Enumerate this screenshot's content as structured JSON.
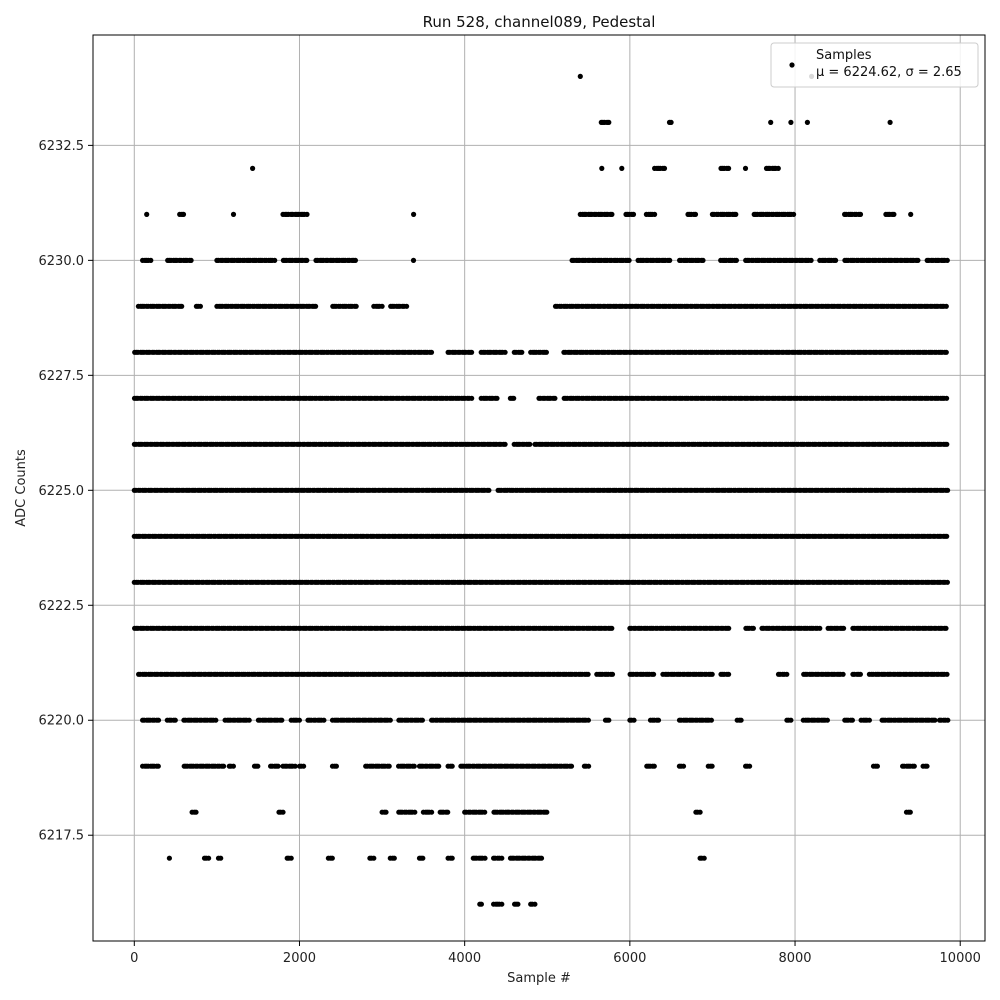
{
  "chart_data": {
    "type": "scatter",
    "title": "Run 528, channel089, Pedestal",
    "xlabel": "Sample #",
    "ylabel": "ADC Counts",
    "xlim": [
      -500,
      10300
    ],
    "ylim": [
      6215.2,
      6234.9
    ],
    "x_ticks": [
      0,
      2000,
      4000,
      6000,
      8000,
      10000
    ],
    "y_ticks": [
      6217.5,
      6220.0,
      6222.5,
      6225.0,
      6227.5,
      6230.0,
      6232.5
    ],
    "grid": true,
    "legend_position": "top-right",
    "series": [
      {
        "name": "Samples",
        "label_stats": "μ = 6224.62, σ = 2.65",
        "color": "#000000",
        "marker": "dot",
        "level_ranges": [
          {
            "y": 6234,
            "x_ranges": [
              [
                5400,
                5420
              ],
              [
                8200,
                8220
              ]
            ]
          },
          {
            "y": 6233,
            "x_ranges": [
              [
                5650,
                5750
              ],
              [
                6480,
                6510
              ],
              [
                7700,
                7720
              ],
              [
                7950,
                7970
              ],
              [
                8150,
                8170
              ],
              [
                9150,
                9170
              ]
            ]
          },
          {
            "y": 6232,
            "x_ranges": [
              [
                1430,
                1450
              ],
              [
                5660,
                5680
              ],
              [
                5900,
                5920
              ],
              [
                6300,
                6420
              ],
              [
                7100,
                7200
              ],
              [
                7400,
                7420
              ],
              [
                7650,
                7800
              ]
            ]
          },
          {
            "y": 6231,
            "x_ranges": [
              [
                150,
                160
              ],
              [
                550,
                600
              ],
              [
                1200,
                1220
              ],
              [
                1800,
                2100
              ],
              [
                3380,
                3400
              ],
              [
                5400,
                5800
              ],
              [
                5950,
                6050
              ],
              [
                6200,
                6300
              ],
              [
                6700,
                6800
              ],
              [
                7000,
                7300
              ],
              [
                7500,
                8000
              ],
              [
                8600,
                8800
              ],
              [
                9100,
                9200
              ],
              [
                9400,
                9420
              ]
            ]
          },
          {
            "y": 6230,
            "x_ranges": [
              [
                100,
                200
              ],
              [
                400,
                700
              ],
              [
                1000,
                1700
              ],
              [
                1800,
                2100
              ],
              [
                2200,
                2700
              ],
              [
                3380,
                3400
              ],
              [
                5300,
                6000
              ],
              [
                6100,
                6500
              ],
              [
                6600,
                6900
              ],
              [
                7100,
                7300
              ],
              [
                7400,
                8200
              ],
              [
                8300,
                8500
              ],
              [
                8600,
                9500
              ],
              [
                9600,
                9850
              ]
            ]
          },
          {
            "y": 6229,
            "x_ranges": [
              [
                50,
                600
              ],
              [
                750,
                800
              ],
              [
                1000,
                2200
              ],
              [
                2400,
                2700
              ],
              [
                2900,
                3000
              ],
              [
                3100,
                3300
              ],
              [
                5100,
                9850
              ]
            ]
          },
          {
            "y": 6228,
            "x_ranges": [
              [
                0,
                3600
              ],
              [
                3800,
                4100
              ],
              [
                4200,
                4500
              ],
              [
                4600,
                4700
              ],
              [
                4800,
                5000
              ],
              [
                5200,
                9850
              ]
            ]
          },
          {
            "y": 6227,
            "x_ranges": [
              [
                0,
                4100
              ],
              [
                4200,
                4400
              ],
              [
                4550,
                4600
              ],
              [
                4900,
                5100
              ],
              [
                5200,
                9850
              ]
            ]
          },
          {
            "y": 6226,
            "x_ranges": [
              [
                0,
                4500
              ],
              [
                4600,
                4800
              ],
              [
                4850,
                9850
              ]
            ]
          },
          {
            "y": 6225,
            "x_ranges": [
              [
                0,
                4300
              ],
              [
                4400,
                9850
              ]
            ]
          },
          {
            "y": 6224,
            "x_ranges": [
              [
                0,
                9850
              ]
            ]
          },
          {
            "y": 6223,
            "x_ranges": [
              [
                0,
                9850
              ]
            ]
          },
          {
            "y": 6222,
            "x_ranges": [
              [
                0,
                5800
              ],
              [
                6000,
                7200
              ],
              [
                7400,
                7500
              ],
              [
                7600,
                8300
              ],
              [
                8400,
                8600
              ],
              [
                8700,
                9850
              ]
            ]
          },
          {
            "y": 6221,
            "x_ranges": [
              [
                50,
                5500
              ],
              [
                5600,
                5800
              ],
              [
                6000,
                6300
              ],
              [
                6400,
                7000
              ],
              [
                7100,
                7200
              ],
              [
                7800,
                7900
              ],
              [
                8100,
                8600
              ],
              [
                8700,
                8800
              ],
              [
                8900,
                9850
              ]
            ]
          },
          {
            "y": 6220,
            "x_ranges": [
              [
                100,
                300
              ],
              [
                400,
                500
              ],
              [
                600,
                1000
              ],
              [
                1100,
                1400
              ],
              [
                1500,
                1800
              ],
              [
                1900,
                2000
              ],
              [
                2100,
                2300
              ],
              [
                2400,
                3100
              ],
              [
                3200,
                3500
              ],
              [
                3600,
                5500
              ],
              [
                5700,
                5750
              ],
              [
                6000,
                6050
              ],
              [
                6250,
                6350
              ],
              [
                6600,
                7000
              ],
              [
                7300,
                7350
              ],
              [
                7900,
                7950
              ],
              [
                8100,
                8400
              ],
              [
                8600,
                8700
              ],
              [
                8800,
                8900
              ],
              [
                9050,
                9700
              ],
              [
                9750,
                9850
              ]
            ]
          },
          {
            "y": 6219,
            "x_ranges": [
              [
                100,
                300
              ],
              [
                600,
                1100
              ],
              [
                1150,
                1200
              ],
              [
                1450,
                1500
              ],
              [
                1650,
                1750
              ],
              [
                1800,
                1950
              ],
              [
                2000,
                2050
              ],
              [
                2400,
                2450
              ],
              [
                2800,
                3100
              ],
              [
                3200,
                3400
              ],
              [
                3450,
                3700
              ],
              [
                3800,
                3850
              ],
              [
                3950,
                5300
              ],
              [
                5450,
                5500
              ],
              [
                6200,
                6300
              ],
              [
                6600,
                6650
              ],
              [
                6950,
                7000
              ],
              [
                7400,
                7450
              ],
              [
                8950,
                9000
              ],
              [
                9300,
                9450
              ],
              [
                9550,
                9600
              ]
            ]
          },
          {
            "y": 6218,
            "x_ranges": [
              [
                700,
                750
              ],
              [
                1750,
                1800
              ],
              [
                3000,
                3050
              ],
              [
                3200,
                3400
              ],
              [
                3500,
                3600
              ],
              [
                3700,
                3800
              ],
              [
                4000,
                4250
              ],
              [
                4350,
                5000
              ],
              [
                6800,
                6850
              ],
              [
                9350,
                9400
              ]
            ]
          },
          {
            "y": 6217,
            "x_ranges": [
              [
                420,
                440
              ],
              [
                850,
                900
              ],
              [
                1020,
                1060
              ],
              [
                1850,
                1900
              ],
              [
                2350,
                2400
              ],
              [
                2850,
                2900
              ],
              [
                3100,
                3150
              ],
              [
                3450,
                3500
              ],
              [
                3800,
                3850
              ],
              [
                4100,
                4250
              ],
              [
                4350,
                4450
              ],
              [
                4550,
                4950
              ],
              [
                6850,
                6900
              ]
            ]
          },
          {
            "y": 6216,
            "x_ranges": [
              [
                4180,
                4220
              ],
              [
                4350,
                4450
              ],
              [
                4600,
                4650
              ],
              [
                4800,
                4850
              ]
            ]
          }
        ]
      }
    ]
  }
}
